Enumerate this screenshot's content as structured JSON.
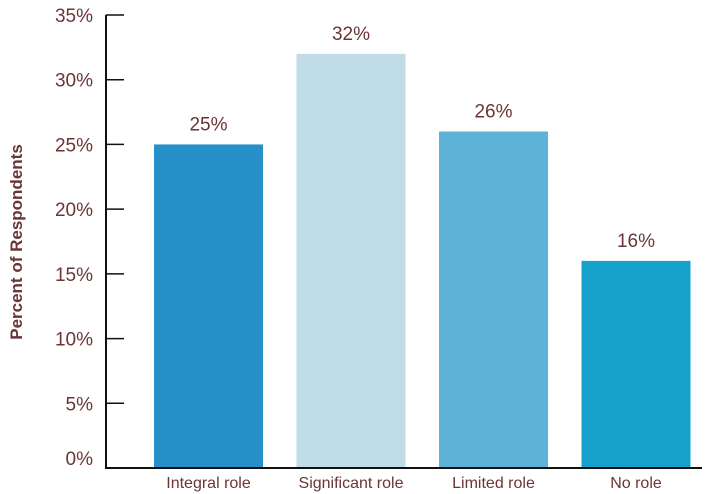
{
  "chart_data": {
    "type": "bar",
    "title": "",
    "xlabel": "",
    "ylabel": "Percent of Respondents",
    "categories": [
      "Integral role",
      "Significant role",
      "Limited role",
      "No role"
    ],
    "values": [
      25,
      32,
      26,
      16
    ],
    "value_labels": [
      "25%",
      "32%",
      "26%",
      "16%"
    ],
    "colors": [
      "#2890c8",
      "#bfdce7",
      "#5db4d8",
      "#16a1cb"
    ],
    "ylim": [
      0,
      35
    ],
    "yticks": [
      0,
      5,
      10,
      15,
      20,
      25,
      30,
      35
    ],
    "ytick_labels": [
      "0%",
      "5%",
      "10%",
      "15%",
      "20%",
      "25%",
      "30%",
      "35%"
    ],
    "grid": false,
    "legend": "none",
    "text_color": "#6b3537",
    "axis_color": "#111111"
  }
}
